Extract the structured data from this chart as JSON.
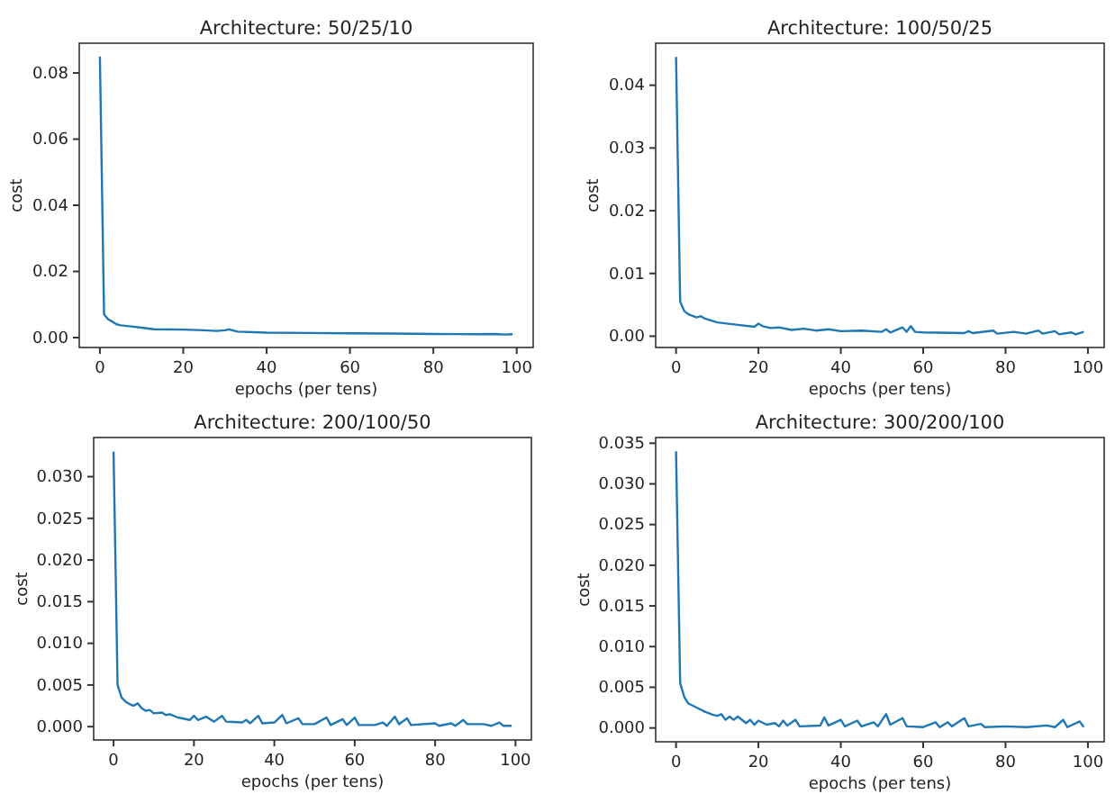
{
  "chart_data": [
    {
      "type": "line",
      "title": "Architecture: 50/25/10",
      "xlabel": "epochs (per tens)",
      "ylabel": "cost",
      "xlim": [
        -4.95,
        103.95
      ],
      "ylim": [
        -0.003,
        0.089
      ],
      "xticks": [
        0,
        20,
        40,
        60,
        80,
        100
      ],
      "yticks": [
        {
          "value": 0,
          "label": "0.00"
        },
        {
          "value": 0.02,
          "label": "0.02"
        },
        {
          "value": 0.04,
          "label": "0.04"
        },
        {
          "value": 0.06,
          "label": "0.06"
        },
        {
          "value": 0.08,
          "label": "0.08"
        }
      ],
      "grid": false,
      "series": [
        {
          "color": "#1f77b4",
          "x": [
            0,
            1,
            2,
            3,
            4,
            5,
            8,
            10,
            13,
            20,
            25,
            28,
            30,
            31,
            33,
            40,
            50,
            60,
            70,
            80,
            90,
            95,
            97,
            99
          ],
          "values": [
            0.085,
            0.007,
            0.0055,
            0.0048,
            0.004,
            0.0037,
            0.0033,
            0.003,
            0.0025,
            0.0024,
            0.0022,
            0.002,
            0.0022,
            0.0025,
            0.0018,
            0.0015,
            0.0014,
            0.0013,
            0.0012,
            0.0011,
            0.001,
            0.0011,
            0.0009,
            0.001
          ]
        }
      ]
    },
    {
      "type": "line",
      "title": "Architecture: 100/50/25",
      "xlabel": "epochs (per tens)",
      "ylabel": "cost",
      "xlim": [
        -4.95,
        103.95
      ],
      "ylim": [
        -0.0018,
        0.0467
      ],
      "xticks": [
        0,
        20,
        40,
        60,
        80,
        100
      ],
      "yticks": [
        {
          "value": 0,
          "label": "0.00"
        },
        {
          "value": 0.01,
          "label": "0.01"
        },
        {
          "value": 0.02,
          "label": "0.02"
        },
        {
          "value": 0.03,
          "label": "0.03"
        },
        {
          "value": 0.04,
          "label": "0.04"
        }
      ],
      "grid": false,
      "series": [
        {
          "color": "#1f77b4",
          "x": [
            0,
            1,
            2,
            3,
            5,
            6,
            7,
            10,
            15,
            19,
            20,
            21,
            23,
            25,
            28,
            31,
            34,
            37,
            40,
            45,
            50,
            51,
            52,
            55,
            56,
            57,
            58,
            60,
            70,
            71,
            72,
            77,
            78,
            82,
            85,
            88,
            89,
            92,
            93,
            96,
            97,
            99
          ],
          "values": [
            0.0445,
            0.0055,
            0.004,
            0.0035,
            0.003,
            0.0032,
            0.0028,
            0.0022,
            0.0018,
            0.0015,
            0.002,
            0.0016,
            0.0013,
            0.0014,
            0.001,
            0.0012,
            0.0009,
            0.0011,
            0.0008,
            0.0009,
            0.0007,
            0.0011,
            0.0006,
            0.0014,
            0.0007,
            0.0016,
            0.0007,
            0.0006,
            0.0005,
            0.0008,
            0.0005,
            0.0009,
            0.0004,
            0.0007,
            0.0004,
            0.0009,
            0.0004,
            0.0008,
            0.0003,
            0.0006,
            0.0003,
            0.0007
          ]
        }
      ]
    },
    {
      "type": "line",
      "title": "Architecture: 200/100/50",
      "xlabel": "epochs (per tens)",
      "ylabel": "cost",
      "xlim": [
        -4.95,
        103.95
      ],
      "ylim": [
        -0.0016,
        0.0347
      ],
      "xticks": [
        0,
        20,
        40,
        60,
        80,
        100
      ],
      "yticks": [
        {
          "value": 0,
          "label": "0.000"
        },
        {
          "value": 0.005,
          "label": "0.005"
        },
        {
          "value": 0.01,
          "label": "0.010"
        },
        {
          "value": 0.015,
          "label": "0.015"
        },
        {
          "value": 0.02,
          "label": "0.020"
        },
        {
          "value": 0.025,
          "label": "0.025"
        },
        {
          "value": 0.03,
          "label": "0.030"
        }
      ],
      "grid": false,
      "series": [
        {
          "color": "#1f77b4",
          "x": [
            0,
            1,
            2,
            3,
            4,
            5,
            6,
            7,
            8,
            9,
            10,
            12,
            13,
            14,
            16,
            19,
            20,
            21,
            23,
            25,
            27,
            28,
            32,
            33,
            34,
            36,
            37,
            40,
            42,
            43,
            46,
            47,
            50,
            53,
            54,
            57,
            58,
            60,
            61,
            65,
            67,
            68,
            70,
            71,
            73,
            74,
            80,
            81,
            84,
            85,
            87,
            88,
            92,
            94,
            96,
            97,
            99
          ],
          "values": [
            0.033,
            0.005,
            0.0035,
            0.003,
            0.0027,
            0.0025,
            0.0028,
            0.0022,
            0.0019,
            0.002,
            0.0016,
            0.0017,
            0.0014,
            0.0015,
            0.0011,
            0.0008,
            0.0013,
            0.0008,
            0.0012,
            0.0006,
            0.0013,
            0.0006,
            0.0005,
            0.0008,
            0.0004,
            0.0013,
            0.0004,
            0.0005,
            0.0014,
            0.0004,
            0.001,
            0.0003,
            0.0003,
            0.0011,
            0.0002,
            0.0009,
            0.0002,
            0.0011,
            0.0002,
            0.0002,
            0.0005,
            0.0001,
            0.0012,
            0.0003,
            0.001,
            0.0002,
            0.0004,
            0.0001,
            0.0004,
            0.0001,
            0.0008,
            0.0003,
            0.0003,
            0.0001,
            0.0005,
            0.0001,
            0.0001
          ]
        }
      ]
    },
    {
      "type": "line",
      "title": "Architecture: 300/200/100",
      "xlabel": "epochs (per tens)",
      "ylabel": "cost",
      "xlim": [
        -4.95,
        103.95
      ],
      "ylim": [
        -0.0017,
        0.0357
      ],
      "xticks": [
        0,
        20,
        40,
        60,
        80,
        100
      ],
      "yticks": [
        {
          "value": 0,
          "label": "0.000"
        },
        {
          "value": 0.005,
          "label": "0.005"
        },
        {
          "value": 0.01,
          "label": "0.010"
        },
        {
          "value": 0.015,
          "label": "0.015"
        },
        {
          "value": 0.02,
          "label": "0.020"
        },
        {
          "value": 0.025,
          "label": "0.025"
        },
        {
          "value": 0.03,
          "label": "0.030"
        },
        {
          "value": 0.035,
          "label": "0.035"
        }
      ],
      "grid": false,
      "series": [
        {
          "color": "#1f77b4",
          "x": [
            0,
            1,
            2,
            3,
            5,
            7,
            9,
            10,
            11,
            12,
            13,
            14,
            15,
            17,
            18,
            19,
            20,
            22,
            24,
            25,
            26,
            27,
            29,
            30,
            35,
            36,
            37,
            40,
            41,
            44,
            45,
            48,
            49,
            51,
            52,
            55,
            56,
            60,
            63,
            64,
            66,
            67,
            70,
            71,
            74,
            75,
            80,
            85,
            90,
            92,
            94,
            95,
            98,
            99
          ],
          "values": [
            0.034,
            0.0055,
            0.0038,
            0.003,
            0.0025,
            0.002,
            0.0016,
            0.0015,
            0.0017,
            0.001,
            0.0014,
            0.001,
            0.0014,
            0.0006,
            0.001,
            0.0004,
            0.0009,
            0.0004,
            0.0006,
            0.0002,
            0.0009,
            0.0003,
            0.001,
            0.0002,
            0.0003,
            0.0013,
            0.0003,
            0.001,
            0.0002,
            0.0009,
            0.0002,
            0.0007,
            0.0002,
            0.0017,
            0.0004,
            0.0012,
            0.0002,
            0.0001,
            0.0007,
            0.0001,
            0.0007,
            0.0002,
            0.0012,
            0.0002,
            0.0005,
            0.0001,
            0.0002,
            0.0001,
            0.0003,
            0.0001,
            0.001,
            0.0001,
            0.0008,
            0.0001
          ]
        }
      ]
    }
  ]
}
